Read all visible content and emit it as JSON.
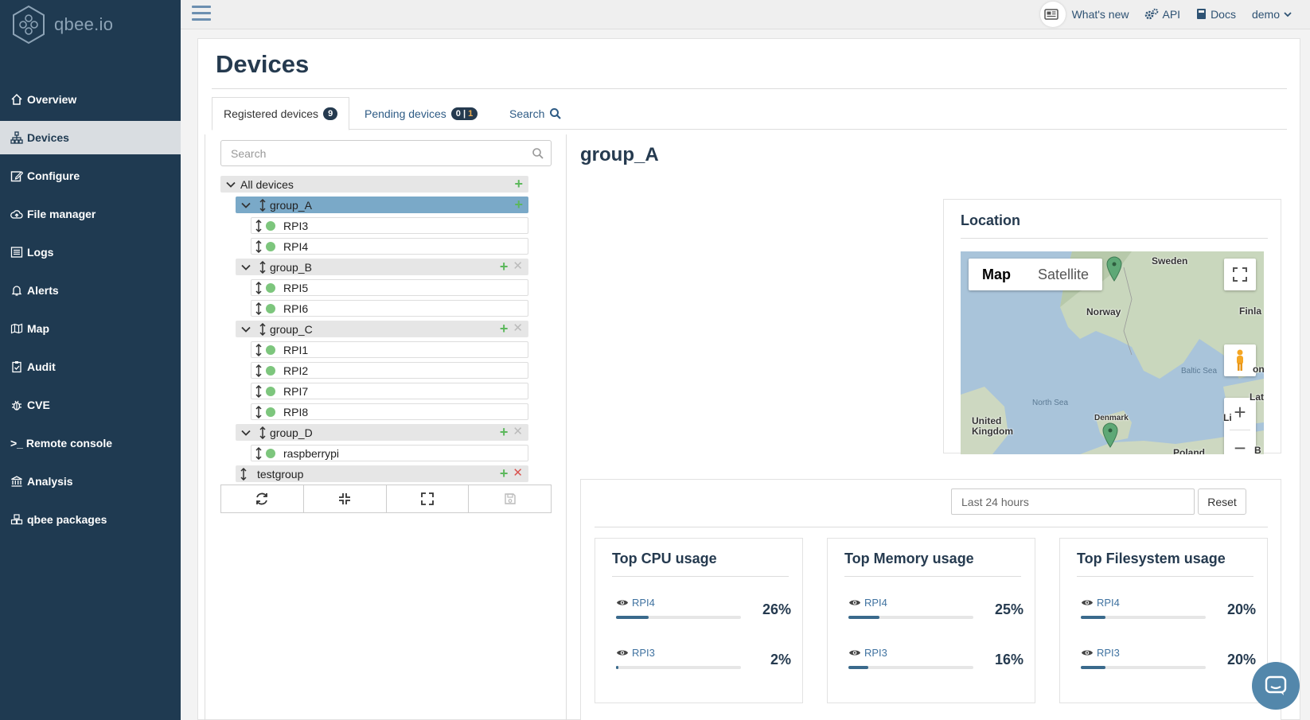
{
  "brand": {
    "name": "qbee.io"
  },
  "sidebar": {
    "items": [
      {
        "label": "Overview",
        "icon": "home-icon"
      },
      {
        "label": "Devices",
        "icon": "sitemap-icon"
      },
      {
        "label": "Configure",
        "icon": "edit-icon"
      },
      {
        "label": "File manager",
        "icon": "cloud-upload-icon"
      },
      {
        "label": "Logs",
        "icon": "list-icon"
      },
      {
        "label": "Alerts",
        "icon": "bell-icon"
      },
      {
        "label": "Map",
        "icon": "map-icon"
      },
      {
        "label": "Audit",
        "icon": "clipboard-check-icon"
      },
      {
        "label": "CVE",
        "icon": "bug-icon"
      },
      {
        "label": ">_ Remote console",
        "icon": "terminal-icon"
      },
      {
        "label": "Analysis",
        "icon": "bank-icon"
      },
      {
        "label": "qbee packages",
        "icon": "boxes-icon"
      }
    ],
    "active": "Devices"
  },
  "topbar": {
    "whats_new": "What's new",
    "api": "API",
    "docs": "Docs",
    "user": "demo"
  },
  "page": {
    "title": "Devices"
  },
  "tabs": {
    "registered": {
      "label": "Registered devices",
      "count": "9"
    },
    "pending": {
      "label": "Pending devices",
      "count_a": "0",
      "sep": "|",
      "count_b": "1"
    },
    "search": {
      "label": "Search"
    }
  },
  "tree": {
    "search_placeholder": "Search",
    "root": "All devices",
    "nodes": [
      {
        "label": "group_A",
        "type": "group",
        "selected": true
      },
      {
        "label": "RPI3",
        "type": "device"
      },
      {
        "label": "RPI4",
        "type": "device"
      },
      {
        "label": "group_B",
        "type": "group"
      },
      {
        "label": "RPI5",
        "type": "device"
      },
      {
        "label": "RPI6",
        "type": "device"
      },
      {
        "label": "group_C",
        "type": "group"
      },
      {
        "label": "RPI1",
        "type": "device"
      },
      {
        "label": "RPI2",
        "type": "device"
      },
      {
        "label": "RPI7",
        "type": "device"
      },
      {
        "label": "RPI8",
        "type": "device"
      },
      {
        "label": "group_D",
        "type": "group"
      },
      {
        "label": "raspberrypi",
        "type": "device"
      },
      {
        "label": "testgroup",
        "type": "group"
      }
    ]
  },
  "detail": {
    "title": "group_A",
    "location": {
      "title": "Location",
      "map_type": [
        "Map",
        "Satellite"
      ],
      "labels": {
        "sweden": "Sweden",
        "norway": "Norway",
        "finland": "Finla",
        "baltic": "Baltic Sea",
        "north_sea": "North Sea",
        "uk": "United\nKingdom",
        "denmark": "Denmark",
        "latvia": "Latv",
        "lithuania": "Li",
        "on": "on",
        "poland": "Poland",
        "b": "B"
      }
    },
    "usage": {
      "range_placeholder": "Last 24 hours",
      "reset": "Reset",
      "metrics": [
        {
          "title": "Top CPU usage",
          "rows": [
            {
              "device": "RPI4",
              "value": 26,
              "pct": "26%"
            },
            {
              "device": "RPI3",
              "value": 2,
              "pct": "2%"
            }
          ]
        },
        {
          "title": "Top Memory usage",
          "rows": [
            {
              "device": "RPI4",
              "value": 25,
              "pct": "25%"
            },
            {
              "device": "RPI3",
              "value": 16,
              "pct": "16%"
            }
          ]
        },
        {
          "title": "Top Filesystem usage",
          "rows": [
            {
              "device": "RPI4",
              "value": 20,
              "pct": "20%"
            },
            {
              "device": "RPI3",
              "value": 20,
              "pct": "20%"
            }
          ]
        }
      ]
    }
  },
  "colors": {
    "sidebar": "#1f3a51",
    "accent": "#2e5b85",
    "online": "#5cb85c",
    "selected": "#7aa9c8"
  }
}
